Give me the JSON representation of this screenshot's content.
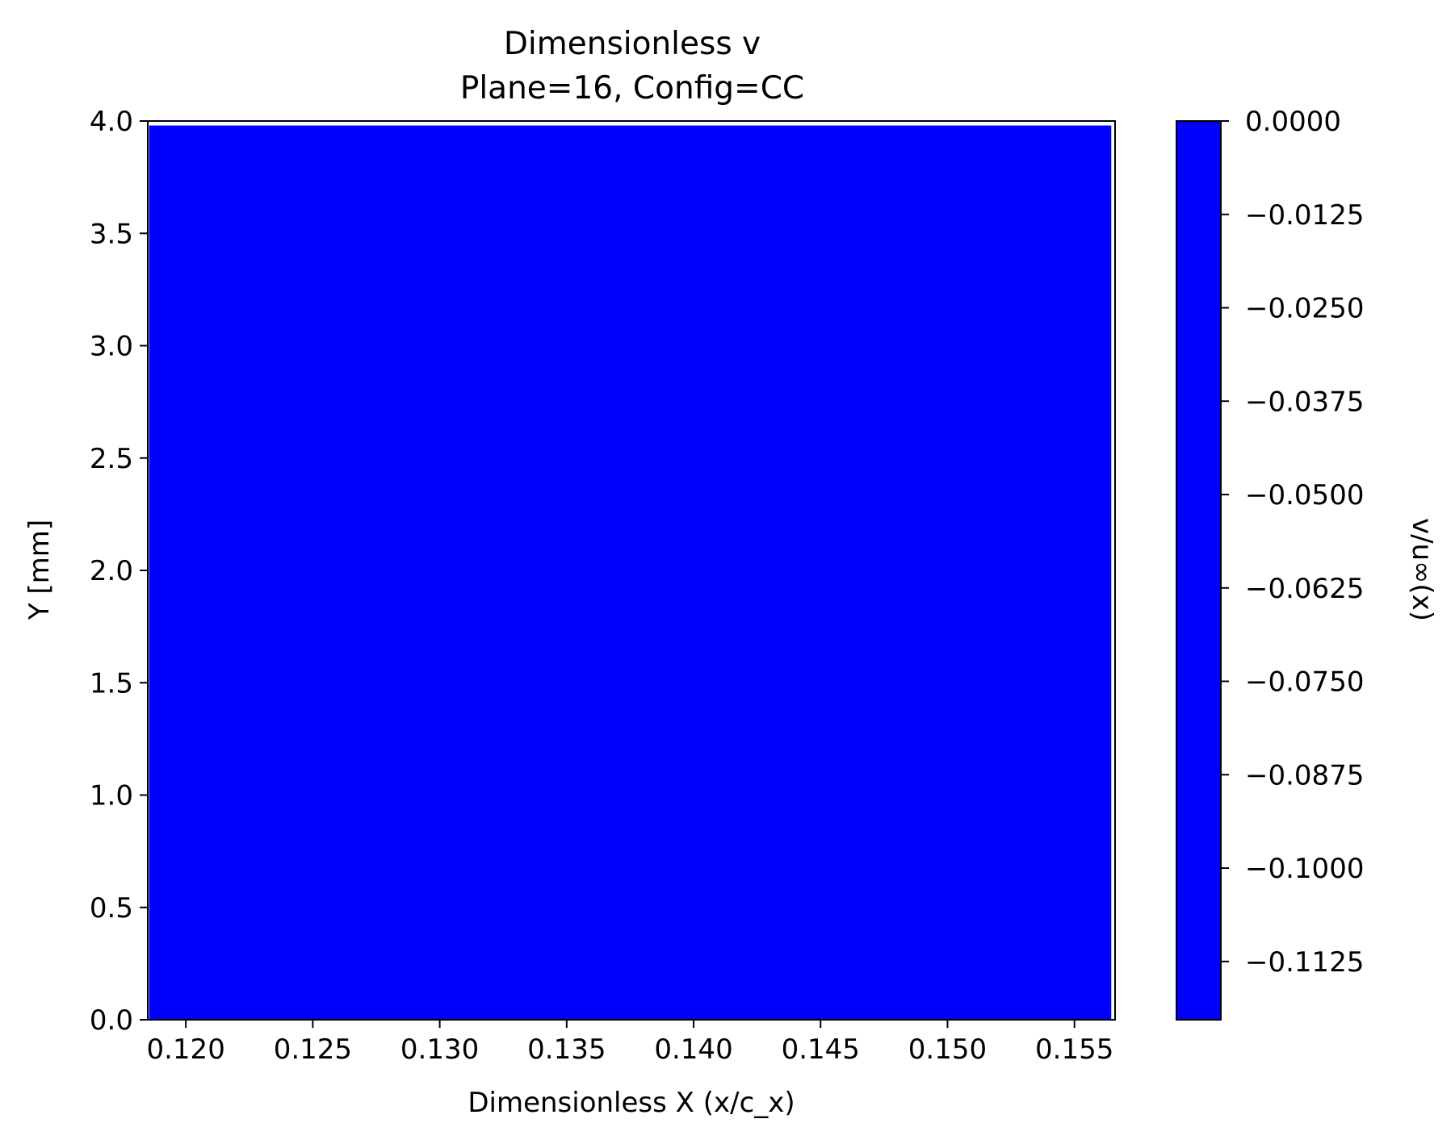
{
  "chart_data": {
    "type": "heatmap",
    "title": "Dimensionless v",
    "subtitle": "Plane=16, Config=CC",
    "xlabel": "Dimensionless X (x/c_x)",
    "ylabel": "Y [mm]",
    "xlim": [
      0.1185,
      0.1566
    ],
    "ylim": [
      0.0,
      4.0
    ],
    "field_xrange": [
      0.11855,
      0.15645
    ],
    "field_yrange": [
      0.0,
      3.98
    ],
    "field_color": "#0000ff",
    "x_ticks": [
      {
        "value": 0.12,
        "label": "0.120"
      },
      {
        "value": 0.125,
        "label": "0.125"
      },
      {
        "value": 0.13,
        "label": "0.130"
      },
      {
        "value": 0.135,
        "label": "0.135"
      },
      {
        "value": 0.14,
        "label": "0.140"
      },
      {
        "value": 0.145,
        "label": "0.145"
      },
      {
        "value": 0.15,
        "label": "0.150"
      },
      {
        "value": 0.155,
        "label": "0.155"
      }
    ],
    "y_ticks": [
      {
        "value": 0.0,
        "label": "0.0"
      },
      {
        "value": 0.5,
        "label": "0.5"
      },
      {
        "value": 1.0,
        "label": "1.0"
      },
      {
        "value": 1.5,
        "label": "1.5"
      },
      {
        "value": 2.0,
        "label": "2.0"
      },
      {
        "value": 2.5,
        "label": "2.5"
      },
      {
        "value": 3.0,
        "label": "3.0"
      },
      {
        "value": 3.5,
        "label": "3.5"
      },
      {
        "value": 4.0,
        "label": "4.0"
      }
    ],
    "colorbar": {
      "label": "v/u∞(x)",
      "range": [
        -0.1203,
        0.0
      ],
      "color": "#0000ff",
      "ticks": [
        {
          "value": 0.0,
          "label": "0.0000"
        },
        {
          "value": -0.0125,
          "label": "−0.0125"
        },
        {
          "value": -0.025,
          "label": "−0.0250"
        },
        {
          "value": -0.0375,
          "label": "−0.0375"
        },
        {
          "value": -0.05,
          "label": "−0.0500"
        },
        {
          "value": -0.0625,
          "label": "−0.0625"
        },
        {
          "value": -0.075,
          "label": "−0.0750"
        },
        {
          "value": -0.0875,
          "label": "−0.0875"
        },
        {
          "value": -0.1,
          "label": "−0.1000"
        },
        {
          "value": -0.1125,
          "label": "−0.1125"
        }
      ]
    },
    "grid": false
  }
}
